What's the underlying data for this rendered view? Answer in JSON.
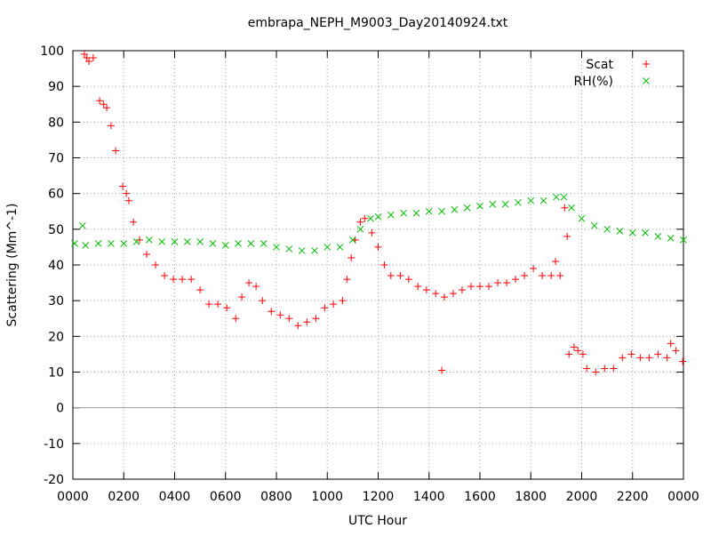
{
  "chart_data": {
    "type": "scatter",
    "title": "embrapa_NEPH_M9003_Day20140924.txt",
    "xlabel": "UTC Hour",
    "ylabel": "Scattering (Mm^-1)",
    "xlim": [
      0,
      24
    ],
    "ylim": [
      -20,
      100
    ],
    "xticks": [
      {
        "value": 0,
        "label": "0000"
      },
      {
        "value": 2,
        "label": "0200"
      },
      {
        "value": 4,
        "label": "0400"
      },
      {
        "value": 6,
        "label": "0600"
      },
      {
        "value": 8,
        "label": "0800"
      },
      {
        "value": 10,
        "label": "1000"
      },
      {
        "value": 12,
        "label": "1200"
      },
      {
        "value": 14,
        "label": "1400"
      },
      {
        "value": 16,
        "label": "1600"
      },
      {
        "value": 18,
        "label": "1800"
      },
      {
        "value": 20,
        "label": "2000"
      },
      {
        "value": 22,
        "label": "2200"
      },
      {
        "value": 24,
        "label": "0000"
      }
    ],
    "yticks": [
      -20,
      -10,
      0,
      10,
      20,
      30,
      40,
      50,
      60,
      70,
      80,
      90,
      100
    ],
    "grid": true,
    "zero_line": true,
    "legend": "upper right",
    "series": [
      {
        "name": "Scat",
        "color": "#ff0000",
        "marker": "plus",
        "x": [
          0.45,
          0.55,
          0.63,
          0.8,
          1.05,
          1.2,
          1.33,
          1.5,
          1.68,
          1.96,
          2.1,
          2.2,
          2.38,
          2.62,
          2.9,
          3.25,
          3.6,
          3.95,
          4.3,
          4.65,
          5.0,
          5.35,
          5.7,
          6.05,
          6.4,
          6.64,
          6.92,
          7.2,
          7.45,
          7.8,
          8.15,
          8.5,
          8.85,
          9.2,
          9.55,
          9.9,
          10.24,
          10.6,
          10.77,
          10.94,
          11.1,
          11.3,
          11.47,
          11.75,
          12.0,
          12.24,
          12.5,
          12.87,
          13.2,
          13.56,
          13.9,
          14.26,
          14.5,
          14.6,
          14.95,
          15.3,
          15.65,
          16.0,
          16.35,
          16.7,
          17.05,
          17.4,
          17.75,
          18.1,
          18.45,
          18.8,
          18.97,
          19.15,
          19.33,
          19.43,
          19.5,
          19.7,
          19.85,
          20.05,
          20.2,
          20.55,
          20.9,
          21.25,
          21.6,
          21.95,
          22.3,
          22.65,
          23.0,
          23.35,
          23.5,
          23.7,
          23.97
        ],
        "values": [
          99,
          98,
          97,
          98,
          86,
          85,
          84,
          79,
          72,
          62,
          60,
          58,
          52,
          47,
          43,
          40,
          37,
          36,
          36,
          36,
          33,
          29,
          29,
          28,
          25,
          31,
          35,
          34,
          30,
          27,
          26,
          25,
          23,
          24,
          25,
          28,
          29,
          30,
          36,
          42,
          47,
          52,
          53,
          49,
          45,
          40,
          37,
          37,
          36,
          34,
          33,
          32,
          10.5,
          31,
          32,
          33,
          34,
          34,
          34,
          35,
          35,
          36,
          37,
          39,
          37,
          37,
          41,
          37,
          56,
          48,
          15,
          17,
          16,
          15,
          11,
          10,
          11,
          11,
          14,
          15,
          14,
          14,
          15,
          14,
          18,
          16,
          13
        ]
      },
      {
        "name": "RH(%)",
        "color": "#00c000",
        "marker": "cross",
        "x": [
          0.07,
          0.38,
          0.5,
          1,
          1.5,
          2,
          2.5,
          3,
          3.5,
          4,
          4.5,
          5,
          5.5,
          6,
          6.5,
          7,
          7.5,
          8,
          8.5,
          9,
          9.5,
          10,
          10.5,
          11,
          11.3,
          11.7,
          12,
          12.5,
          13,
          13.5,
          14,
          14.5,
          15,
          15.5,
          16,
          16.5,
          17,
          17.5,
          18,
          18.5,
          19,
          19.3,
          19.6,
          20,
          20.5,
          21,
          21.5,
          22,
          22.5,
          23,
          23.5,
          24
        ],
        "values": [
          46,
          51,
          45.5,
          46,
          46,
          46,
          46.5,
          47,
          46.5,
          46.5,
          46.5,
          46.5,
          46,
          45.5,
          46,
          46,
          46,
          45,
          44.5,
          44,
          44,
          45,
          45,
          47,
          50,
          53,
          53.5,
          54,
          54.5,
          54.5,
          55,
          55,
          55.5,
          56,
          56.5,
          57,
          57,
          57.5,
          58,
          58,
          59,
          59,
          56,
          53,
          51,
          50,
          49.5,
          49,
          49,
          48,
          47.5,
          47
        ]
      }
    ]
  }
}
